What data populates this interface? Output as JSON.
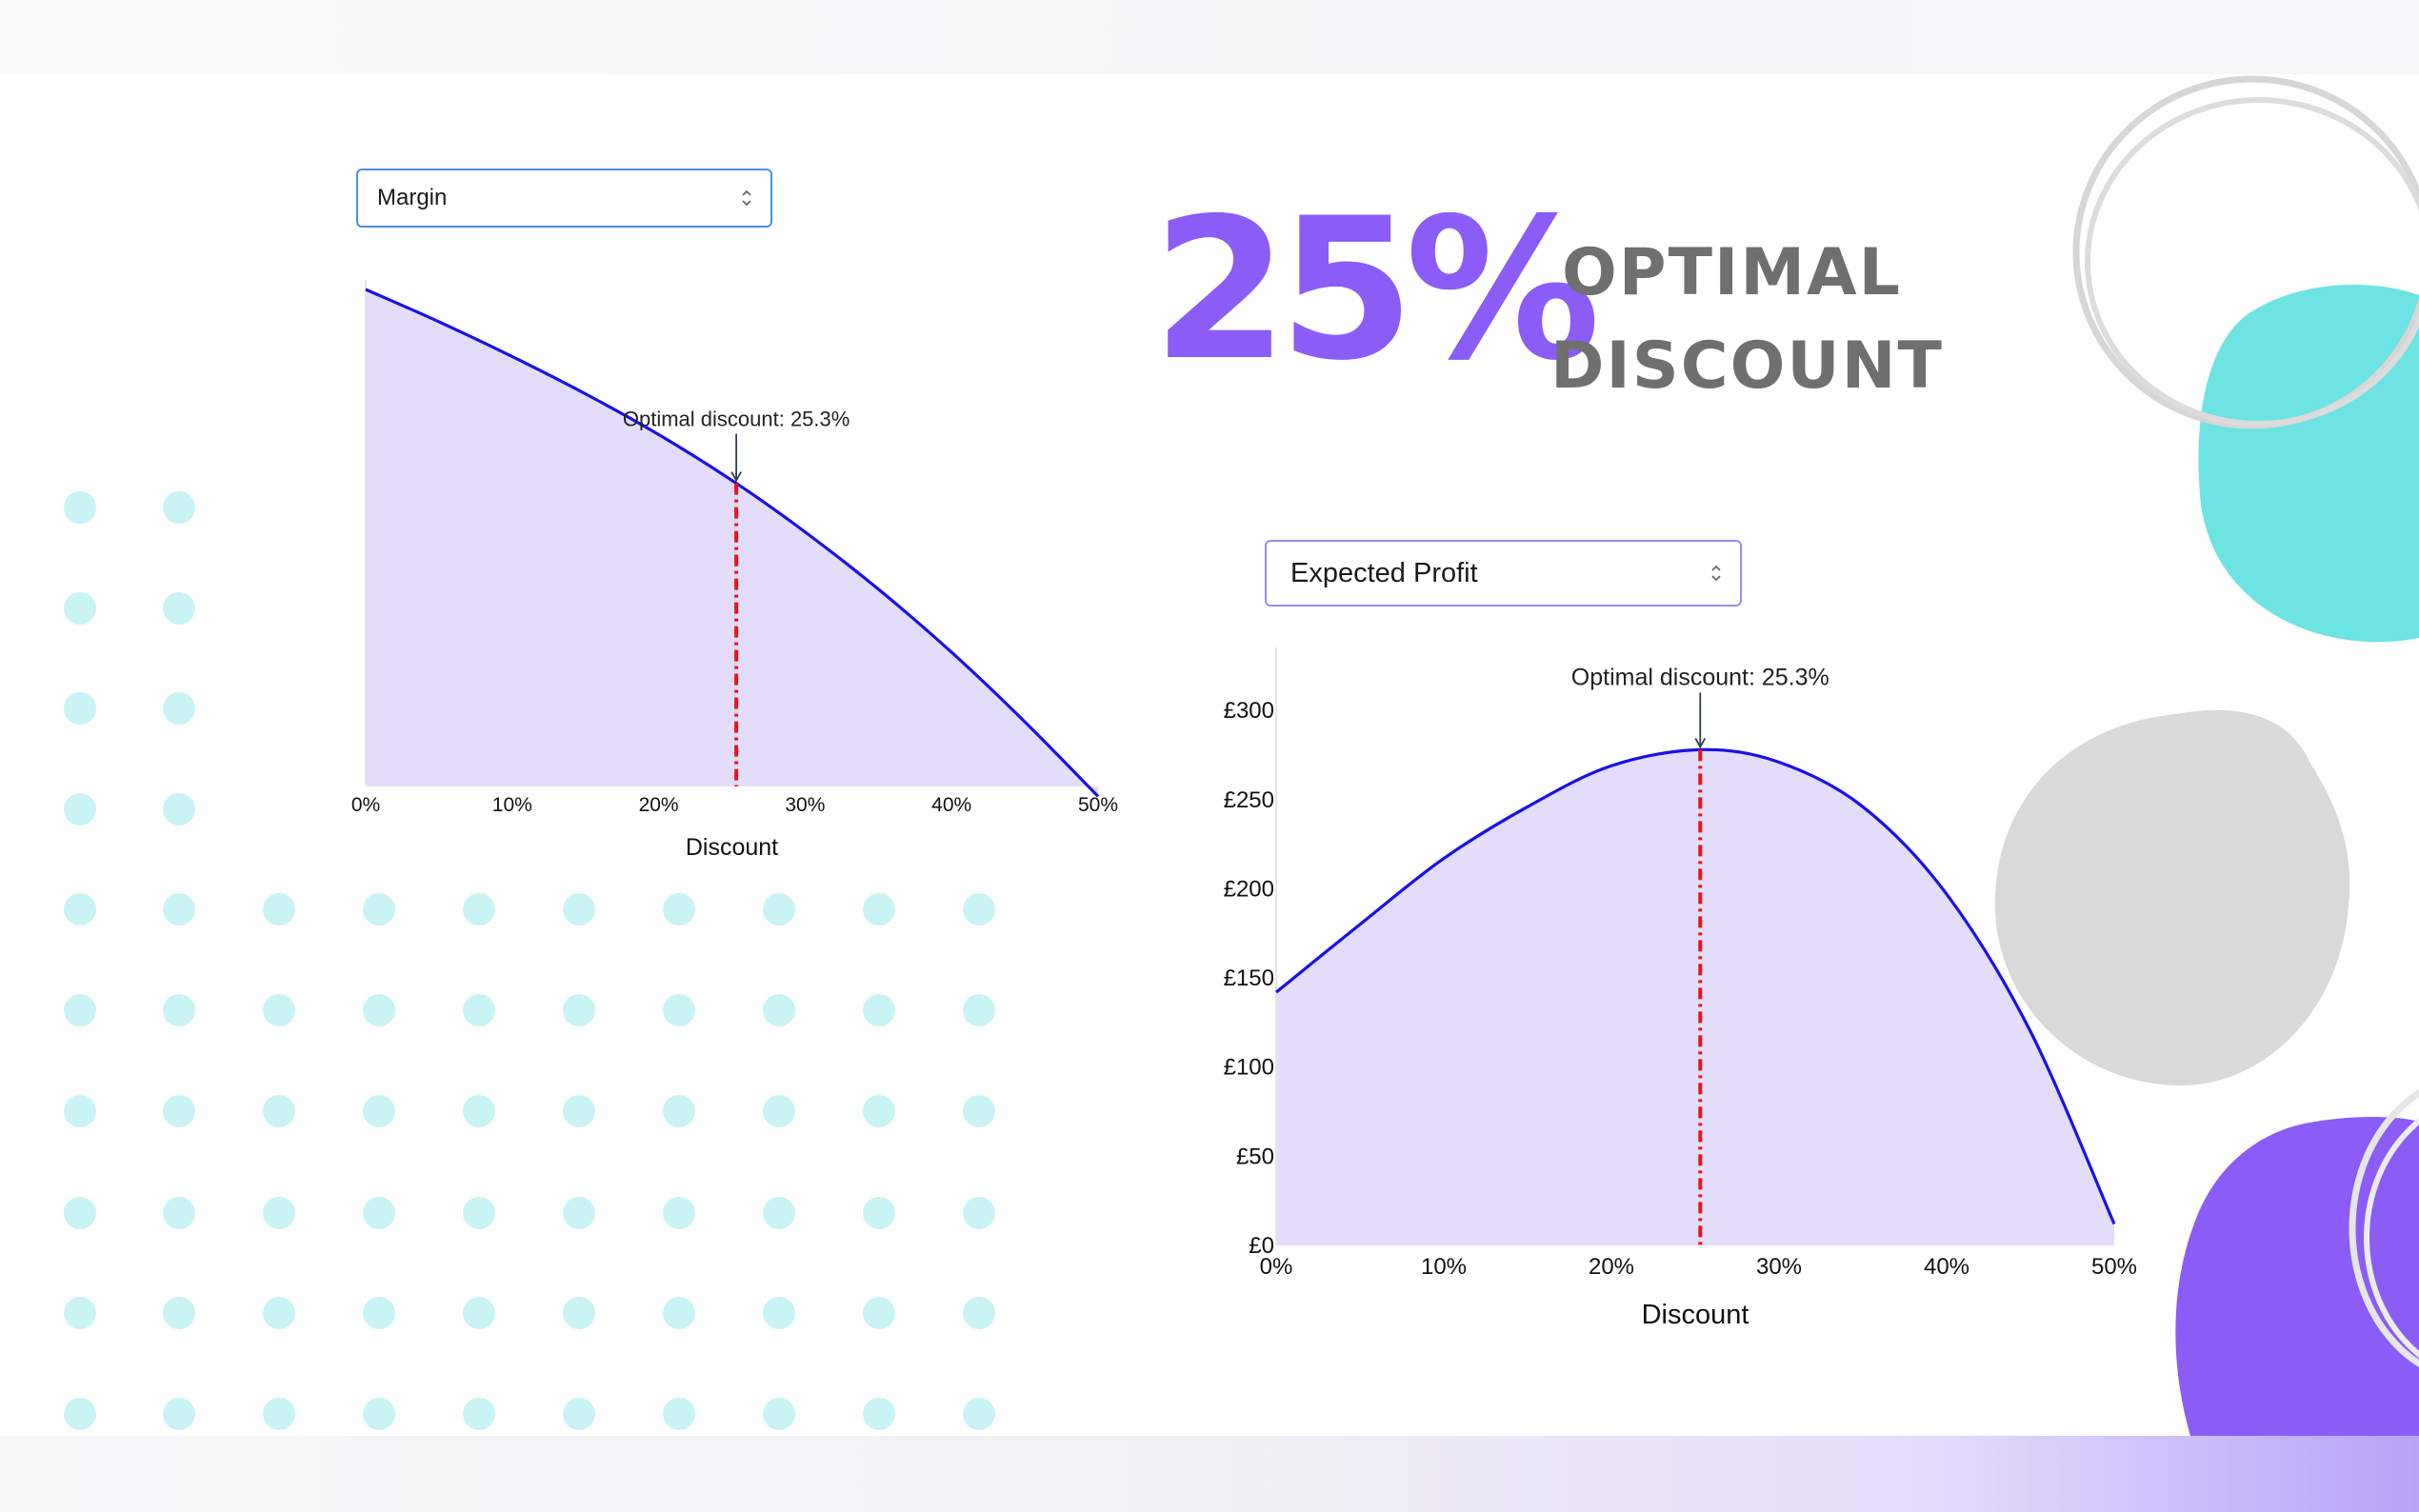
{
  "headline": {
    "value": "25%",
    "line1": "OPTIMAL",
    "line2": "DISCOUNT",
    "value_color": "#8b5cf6",
    "text_color": "#6f6f6f"
  },
  "selects": {
    "margin": {
      "selected": "Margin"
    },
    "profit": {
      "selected": "Expected Profit"
    }
  },
  "colors": {
    "accent_purple": "#8b5cf6",
    "teal": "#6ee3e3",
    "dot_teal": "#c9f3f4",
    "line_blue": "#1a10e8",
    "optimal_red": "#e8141c",
    "area_fill": "#e3dcfb"
  },
  "chart_data": [
    {
      "type": "area",
      "title": "",
      "xlabel": "Discount",
      "ylabel": "",
      "x_ticks": [
        "0%",
        "10%",
        "20%",
        "30%",
        "40%",
        "50%"
      ],
      "y_ticks": [],
      "xlim": [
        0,
        50
      ],
      "ylim": [
        0,
        1
      ],
      "x": [
        0,
        5,
        10,
        15,
        20,
        25.3,
        30,
        35,
        40,
        45,
        50
      ],
      "values": [
        1.0,
        0.935,
        0.865,
        0.79,
        0.708,
        0.61,
        0.512,
        0.397,
        0.27,
        0.13,
        -0.02
      ],
      "annotation": {
        "text": "Optimal discount: 25.3%",
        "x": 25.3
      }
    },
    {
      "type": "area",
      "title": "",
      "xlabel": "Discount",
      "ylabel": "",
      "x_ticks": [
        "0%",
        "10%",
        "20%",
        "30%",
        "40%",
        "50%"
      ],
      "y_ticks": [
        "£0",
        "£50",
        "£100",
        "£150",
        "£200",
        "£250",
        "£300"
      ],
      "y_tick_values": [
        0,
        50,
        100,
        150,
        200,
        250,
        300
      ],
      "xlim": [
        0,
        50
      ],
      "ylim": [
        0,
        330
      ],
      "x": [
        0,
        5,
        10,
        15,
        20,
        25.3,
        30,
        35,
        40,
        45,
        50
      ],
      "values": [
        142,
        180,
        217,
        246,
        269,
        278,
        271,
        246,
        197,
        120,
        12
      ],
      "annotation": {
        "text": "Optimal discount: 25.3%",
        "x": 25.3
      }
    }
  ]
}
